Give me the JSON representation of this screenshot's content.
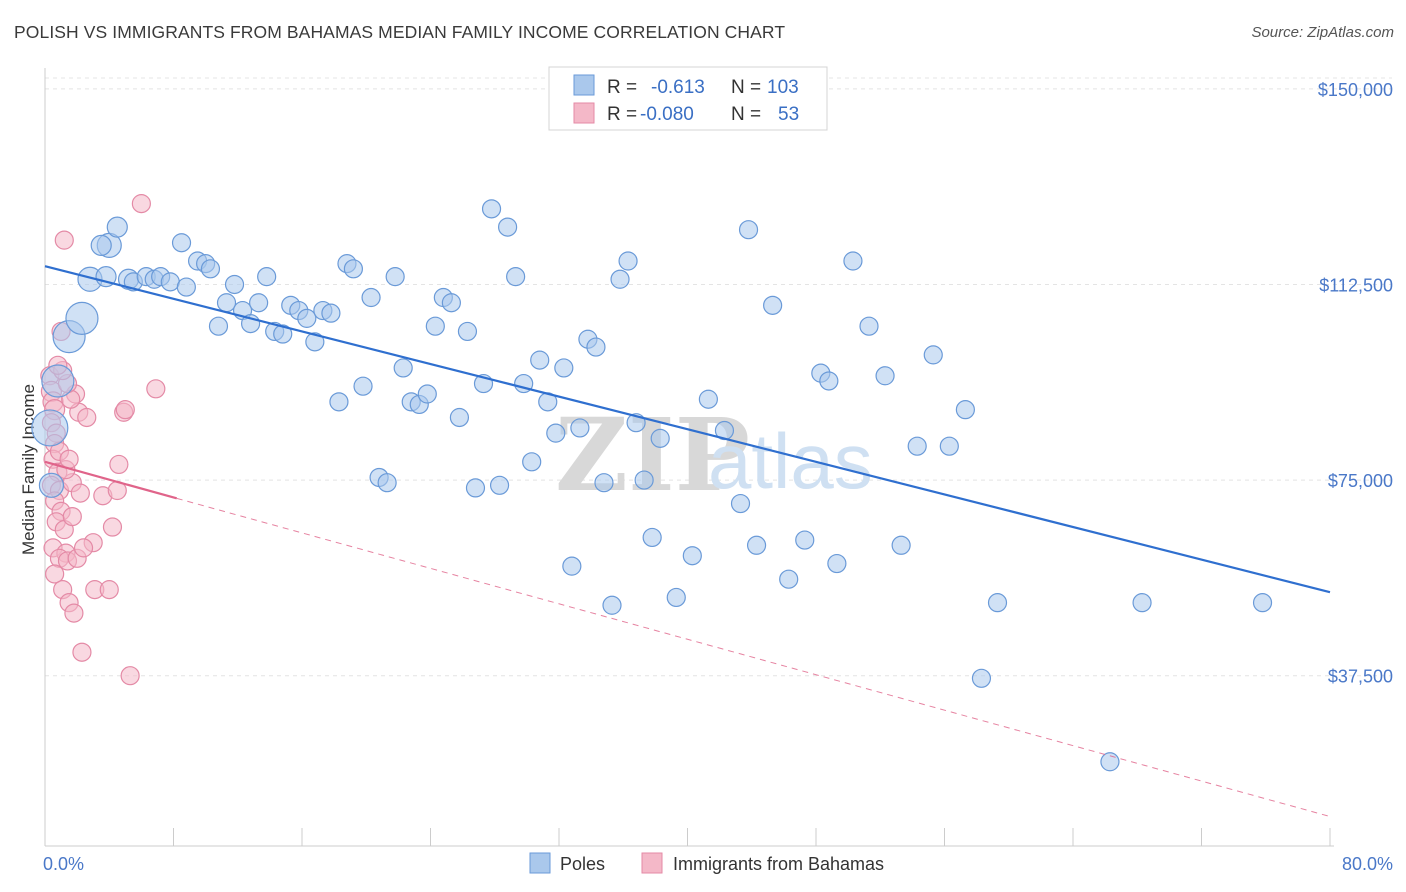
{
  "title": "POLISH VS IMMIGRANTS FROM BAHAMAS MEDIAN FAMILY INCOME CORRELATION CHART",
  "source": "Source: ZipAtlas.com",
  "watermark": {
    "zip": "ZIP",
    "atlas": "atlas"
  },
  "legend": {
    "r_label": "R =",
    "n_label": "N =",
    "rows": [
      {
        "r": "-0.613",
        "n": "103"
      },
      {
        "r": "-0.080",
        "n": "53"
      }
    ]
  },
  "colors": {
    "poles_fill": "#aac8ec",
    "poles_stroke": "#6a9ad8",
    "poles_line": "#2f6fcf",
    "bahamas_fill": "#f4b8c8",
    "bahamas_stroke": "#e48aa6",
    "bahamas_line": "#e0648a",
    "grid": "#e4e4e4"
  },
  "chart_data": {
    "type": "scatter",
    "title": "POLISH VS IMMIGRANTS FROM BAHAMAS MEDIAN FAMILY INCOME CORRELATION CHART",
    "xlabel": "",
    "ylabel": "Median Family Income",
    "xlim": [
      0,
      80
    ],
    "ylim": [
      6000,
      154000
    ],
    "x_tick_labels": [
      "0.0%",
      "80.0%"
    ],
    "y_ticks": [
      37500,
      75000,
      112500,
      150000
    ],
    "y_tick_labels": [
      "$37,500",
      "$75,000",
      "$112,500",
      "$150,000"
    ],
    "legend_position": "top-center",
    "series": [
      {
        "name": "Poles",
        "trend": {
          "x": [
            0,
            80
          ],
          "y": [
            116000,
            53500
          ],
          "style": "solid"
        },
        "points": [
          [
            0.3,
            85000,
            18
          ],
          [
            0.8,
            94000,
            16
          ],
          [
            1.5,
            102500,
            16
          ],
          [
            2.3,
            106000,
            16
          ],
          [
            0.4,
            74000,
            12
          ],
          [
            2.8,
            113500,
            12
          ],
          [
            4.0,
            120000,
            12
          ],
          [
            4.5,
            123500,
            10
          ],
          [
            3.5,
            120000,
            10
          ],
          [
            3.8,
            114000,
            10
          ],
          [
            5.2,
            113500,
            10
          ],
          [
            5.5,
            113000,
            9
          ],
          [
            6.3,
            114000,
            9
          ],
          [
            6.8,
            113500,
            9
          ],
          [
            7.2,
            114000,
            9
          ],
          [
            7.8,
            113000,
            9
          ],
          [
            8.5,
            120500,
            9
          ],
          [
            8.8,
            112000,
            9
          ],
          [
            9.5,
            117000,
            9
          ],
          [
            10.0,
            116500,
            9
          ],
          [
            10.3,
            115500,
            9
          ],
          [
            10.8,
            104500,
            9
          ],
          [
            11.3,
            109000,
            9
          ],
          [
            11.8,
            112500,
            9
          ],
          [
            12.3,
            107500,
            9
          ],
          [
            12.8,
            105000,
            9
          ],
          [
            13.3,
            109000,
            9
          ],
          [
            13.8,
            114000,
            9
          ],
          [
            14.3,
            103500,
            9
          ],
          [
            14.8,
            103000,
            9
          ],
          [
            15.3,
            108500,
            9
          ],
          [
            15.8,
            107500,
            9
          ],
          [
            16.3,
            106000,
            9
          ],
          [
            16.8,
            101500,
            9
          ],
          [
            17.3,
            107500,
            9
          ],
          [
            17.8,
            107000,
            9
          ],
          [
            18.3,
            90000,
            9
          ],
          [
            18.8,
            116500,
            9
          ],
          [
            19.2,
            115500,
            9
          ],
          [
            19.8,
            93000,
            9
          ],
          [
            20.3,
            110000,
            9
          ],
          [
            20.8,
            75500,
            9
          ],
          [
            21.3,
            74500,
            9
          ],
          [
            21.8,
            114000,
            9
          ],
          [
            22.3,
            96500,
            9
          ],
          [
            22.8,
            90000,
            9
          ],
          [
            23.3,
            89500,
            9
          ],
          [
            23.8,
            91500,
            9
          ],
          [
            24.3,
            104500,
            9
          ],
          [
            24.8,
            110000,
            9
          ],
          [
            25.3,
            109000,
            9
          ],
          [
            25.8,
            87000,
            9
          ],
          [
            26.3,
            103500,
            9
          ],
          [
            26.8,
            73500,
            9
          ],
          [
            27.3,
            93500,
            9
          ],
          [
            27.8,
            127000,
            9
          ],
          [
            28.3,
            74000,
            9
          ],
          [
            28.8,
            123500,
            9
          ],
          [
            29.3,
            114000,
            9
          ],
          [
            29.8,
            93500,
            9
          ],
          [
            30.3,
            78500,
            9
          ],
          [
            30.8,
            98000,
            9
          ],
          [
            31.3,
            90000,
            9
          ],
          [
            31.8,
            84000,
            9
          ],
          [
            32.3,
            96500,
            9
          ],
          [
            32.8,
            58500,
            9
          ],
          [
            33.3,
            85000,
            9
          ],
          [
            33.8,
            102000,
            9
          ],
          [
            34.3,
            100500,
            9
          ],
          [
            34.8,
            74500,
            9
          ],
          [
            35.3,
            51000,
            9
          ],
          [
            35.8,
            113500,
            9
          ],
          [
            36.3,
            117000,
            9
          ],
          [
            36.8,
            86000,
            9
          ],
          [
            37.3,
            75000,
            9
          ],
          [
            37.8,
            64000,
            9
          ],
          [
            38.3,
            83000,
            9
          ],
          [
            39.3,
            52500,
            9
          ],
          [
            40.3,
            60500,
            9
          ],
          [
            41.3,
            90500,
            9
          ],
          [
            42.3,
            84500,
            9
          ],
          [
            43.3,
            70500,
            9
          ],
          [
            43.8,
            123000,
            9
          ],
          [
            44.3,
            62500,
            9
          ],
          [
            45.3,
            108500,
            9
          ],
          [
            46.3,
            56000,
            9
          ],
          [
            47.3,
            63500,
            9
          ],
          [
            48.3,
            95500,
            9
          ],
          [
            48.8,
            94000,
            9
          ],
          [
            49.3,
            59000,
            9
          ],
          [
            50.3,
            117000,
            9
          ],
          [
            51.3,
            104500,
            9
          ],
          [
            52.3,
            95000,
            9
          ],
          [
            53.3,
            62500,
            9
          ],
          [
            54.3,
            81500,
            9
          ],
          [
            55.3,
            99000,
            9
          ],
          [
            56.3,
            81500,
            9
          ],
          [
            57.3,
            88500,
            9
          ],
          [
            58.3,
            37000,
            9
          ],
          [
            59.3,
            51500,
            9
          ],
          [
            66.3,
            21000,
            9
          ],
          [
            68.3,
            51500,
            9
          ],
          [
            75.8,
            51500,
            9
          ]
        ]
      },
      {
        "name": "Immigrants from Bahamas",
        "trend": {
          "x": [
            0,
            8.2
          ],
          "y": [
            78500,
            71500
          ],
          "style": "solid",
          "extension": {
            "x": [
              8.2,
              80
            ],
            "y": [
              71500,
              10500
            ],
            "style": "dashed"
          }
        },
        "points": [
          [
            0.3,
            95000,
            9
          ],
          [
            0.4,
            92000,
            10
          ],
          [
            0.5,
            90000,
            10
          ],
          [
            0.6,
            88500,
            10
          ],
          [
            0.4,
            86000,
            9
          ],
          [
            0.7,
            84000,
            9
          ],
          [
            0.6,
            82000,
            9
          ],
          [
            0.5,
            79000,
            9
          ],
          [
            0.8,
            76500,
            9
          ],
          [
            0.4,
            74000,
            9
          ],
          [
            0.9,
            73000,
            9
          ],
          [
            0.6,
            71000,
            9
          ],
          [
            1.0,
            69000,
            9
          ],
          [
            0.7,
            67000,
            9
          ],
          [
            1.2,
            65500,
            9
          ],
          [
            0.5,
            62000,
            9
          ],
          [
            1.3,
            61000,
            9
          ],
          [
            0.9,
            60000,
            9
          ],
          [
            1.4,
            59500,
            9
          ],
          [
            0.6,
            57000,
            9
          ],
          [
            1.1,
            54000,
            9
          ],
          [
            1.5,
            51500,
            9
          ],
          [
            1.8,
            49500,
            9
          ],
          [
            2.3,
            42000,
            9
          ],
          [
            2.1,
            88000,
            9
          ],
          [
            1.9,
            91500,
            9
          ],
          [
            1.6,
            90500,
            9
          ],
          [
            1.4,
            93500,
            9
          ],
          [
            1.1,
            96000,
            9
          ],
          [
            1.0,
            103500,
            9
          ],
          [
            1.2,
            121000,
            9
          ],
          [
            3.0,
            63000,
            9
          ],
          [
            3.1,
            54000,
            9
          ],
          [
            3.6,
            72000,
            9
          ],
          [
            4.0,
            54000,
            9
          ],
          [
            4.2,
            66000,
            9
          ],
          [
            4.5,
            73000,
            9
          ],
          [
            4.6,
            78000,
            9
          ],
          [
            4.9,
            88000,
            9
          ],
          [
            5.0,
            88500,
            9
          ],
          [
            5.3,
            37500,
            9
          ],
          [
            6.0,
            128000,
            9
          ],
          [
            6.9,
            92500,
            9
          ],
          [
            1.7,
            74500,
            9
          ],
          [
            1.3,
            77000,
            9
          ],
          [
            0.9,
            80500,
            9
          ],
          [
            2.0,
            60000,
            9
          ],
          [
            2.4,
            62000,
            9
          ],
          [
            1.7,
            68000,
            9
          ],
          [
            2.6,
            87000,
            9
          ],
          [
            0.8,
            97000,
            9
          ],
          [
            1.5,
            79000,
            9
          ],
          [
            2.2,
            72500,
            9
          ]
        ]
      }
    ]
  },
  "bottom_legend": [
    {
      "label": "Poles"
    },
    {
      "label": "Immigrants from Bahamas"
    }
  ]
}
